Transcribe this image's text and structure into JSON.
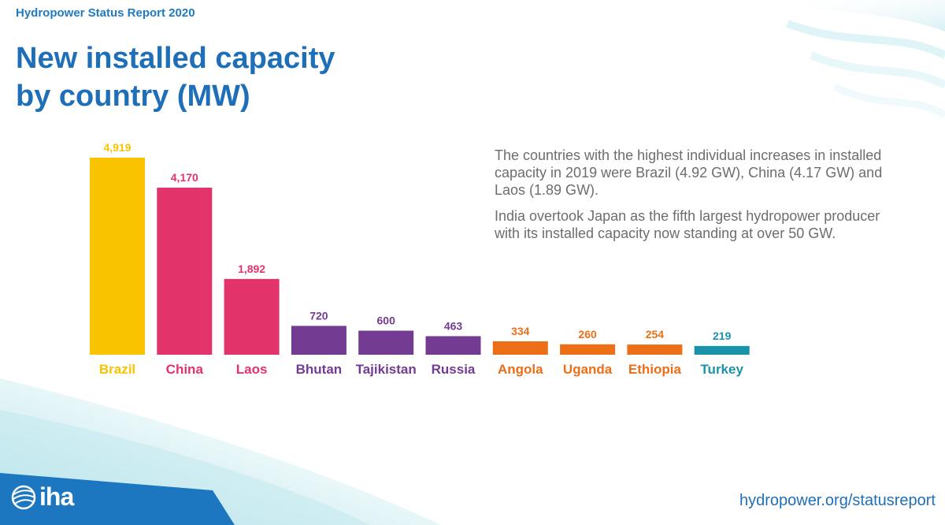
{
  "header": {
    "report_title": "Hydropower Status Report 2020",
    "title_line1": "New installed capacity",
    "title_line2": "by country (MW)"
  },
  "description": {
    "para1": "The countries with the highest individual increases in installed capacity in 2019 were Brazil (4.92 GW), China (4.17 GW) and Laos (1.89 GW).",
    "para2": "India overtook Japan as the fifth largest hydropower producer with its installed capacity now standing at over 50 GW."
  },
  "footer": {
    "logo_text": "iha",
    "link": "hydropower.org/statusreport"
  },
  "colors": {
    "title": "#1f6fb8",
    "brazil": "#f9c300",
    "china_laos": "#e2336a",
    "purple": "#733b91",
    "orange": "#ec6e16",
    "teal": "#1a93a8"
  },
  "chart_data": {
    "type": "bar",
    "title": "New installed capacity by country (MW)",
    "xlabel": "",
    "ylabel": "",
    "ylim": [
      0,
      4919
    ],
    "categories": [
      "Brazil",
      "China",
      "Laos",
      "Bhutan",
      "Tajikistan",
      "Russia",
      "Angola",
      "Uganda",
      "Ethiopia",
      "Turkey"
    ],
    "values": [
      4919,
      4170,
      1892,
      720,
      600,
      463,
      334,
      260,
      254,
      219
    ],
    "value_labels": [
      "4,919",
      "4,170",
      "1,892",
      "720",
      "600",
      "463",
      "334",
      "260",
      "254",
      "219"
    ],
    "bar_colors": [
      "#f9c300",
      "#e2336a",
      "#e2336a",
      "#733b91",
      "#733b91",
      "#733b91",
      "#ec6e16",
      "#ec6e16",
      "#ec6e16",
      "#1a93a8"
    ],
    "grid": false,
    "legend": "none"
  }
}
